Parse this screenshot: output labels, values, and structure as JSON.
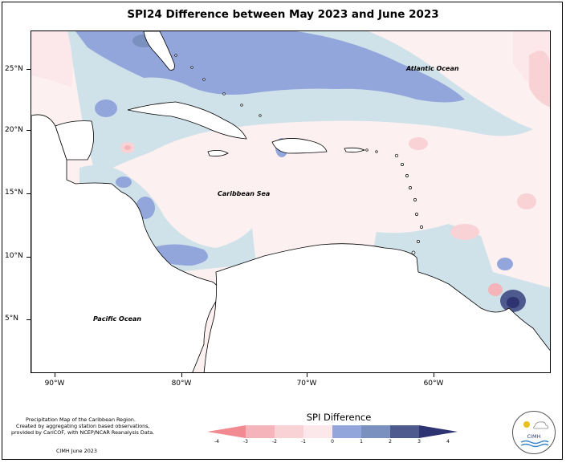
{
  "title": "SPI24 Difference between May 2023 and June 2023",
  "y_ticks": [
    "25°N",
    "20°N",
    "15°N",
    "10°N",
    "5°N"
  ],
  "x_ticks": [
    "90°W",
    "80°W",
    "70°W",
    "60°W"
  ],
  "labels": {
    "atlantic": "Atlantic Ocean",
    "caribbean": "Caribbean Sea",
    "pacific": "Pacific Ocean"
  },
  "footer": {
    "line1": "Precipitation Map of the Caribbean Region.",
    "line2": "Created by aggregating station based observations,",
    "line3": "provided by CariCOF, with NCEP/NCAR Reanalysis Data.",
    "credit": "CIMH June 2023"
  },
  "legend": {
    "title": "SPI Difference",
    "ticks": [
      "-4",
      "-3",
      "-2",
      "-1",
      "0",
      "1",
      "2",
      "3",
      "4"
    ],
    "colors": [
      "#f28a91",
      "#f4b4b9",
      "#f8d2d5",
      "#fce8ea",
      "#d0e2e9",
      "#92a6dc",
      "#7a90bf",
      "#4e5a8e",
      "#2e3472"
    ]
  },
  "logo": {
    "text": "CIMH"
  }
}
